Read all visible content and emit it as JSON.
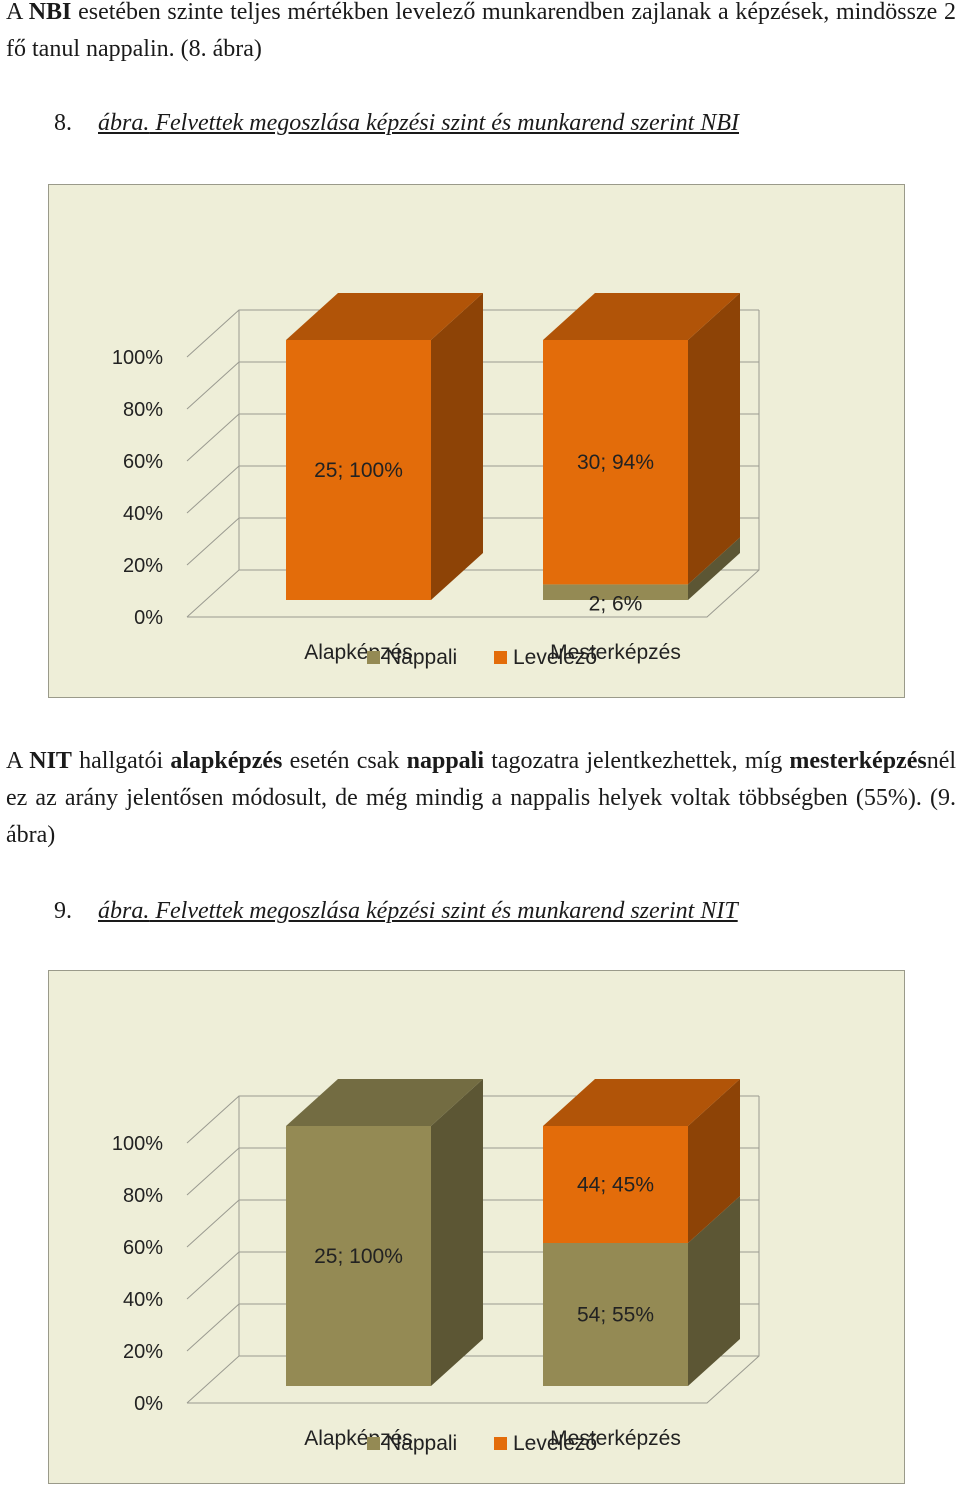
{
  "intro": {
    "prefix": "A ",
    "bold": "NBI",
    "rest": " esetében szinte teljes mértékben levelező munkarendben zajlanak a képzések, mindössze 2 fő tanul nappalin. (8. ábra)"
  },
  "figure8": {
    "number": "8.",
    "caption_em": "ábra.",
    "caption_rest": " Felvettek megoszlása képzési szint és munkarend szerint NBI"
  },
  "para2": {
    "p1": "A ",
    "b1": "NIT",
    "p2": " hallgatói ",
    "b2": "alapképzés",
    "p3": " esetén csak ",
    "b3": "nappali",
    "p4": " tagozatra jelentkezhettek, míg ",
    "b4": "mesterképzés",
    "p5": "nél ez az arány jelentősen módosult, de még mindig a nappalis helyek voltak többségben (55%). (9. ábra)"
  },
  "figure9": {
    "number": "9.",
    "caption_em": "ábra.",
    "caption_rest": " Felvettek megoszlása képzési szint és munkarend szerint NIT"
  },
  "chart_data": [
    {
      "type": "bar",
      "stacked": true,
      "percent": true,
      "three_d": true,
      "categories": [
        "Alapképzés",
        "Mesterképzés"
      ],
      "y_ticks": [
        "0%",
        "20%",
        "40%",
        "60%",
        "80%",
        "100%"
      ],
      "ylim": [
        0,
        100
      ],
      "series": [
        {
          "name": "Nappali",
          "color": "#948a54",
          "values": [
            0,
            2
          ],
          "percents": [
            0,
            6
          ],
          "labels": [
            "",
            "2; 6%"
          ]
        },
        {
          "name": "Levelező",
          "color": "#e36c0a",
          "values": [
            25,
            30
          ],
          "percents": [
            100,
            94
          ],
          "labels": [
            "25; 100%",
            "30; 94%"
          ]
        }
      ],
      "legend": "bottom"
    },
    {
      "type": "bar",
      "stacked": true,
      "percent": true,
      "three_d": true,
      "categories": [
        "Alapképzés",
        "Mesterképzés"
      ],
      "y_ticks": [
        "0%",
        "20%",
        "40%",
        "60%",
        "80%",
        "100%"
      ],
      "ylim": [
        0,
        100
      ],
      "series": [
        {
          "name": "Nappali",
          "color": "#948a54",
          "values": [
            25,
            54
          ],
          "percents": [
            100,
            55
          ],
          "labels": [
            "25; 100%",
            "54; 55%"
          ]
        },
        {
          "name": "Levelező",
          "color": "#e36c0a",
          "values": [
            0,
            44
          ],
          "percents": [
            0,
            45
          ],
          "labels": [
            "",
            "44; 45%"
          ]
        }
      ],
      "legend": "bottom"
    }
  ]
}
